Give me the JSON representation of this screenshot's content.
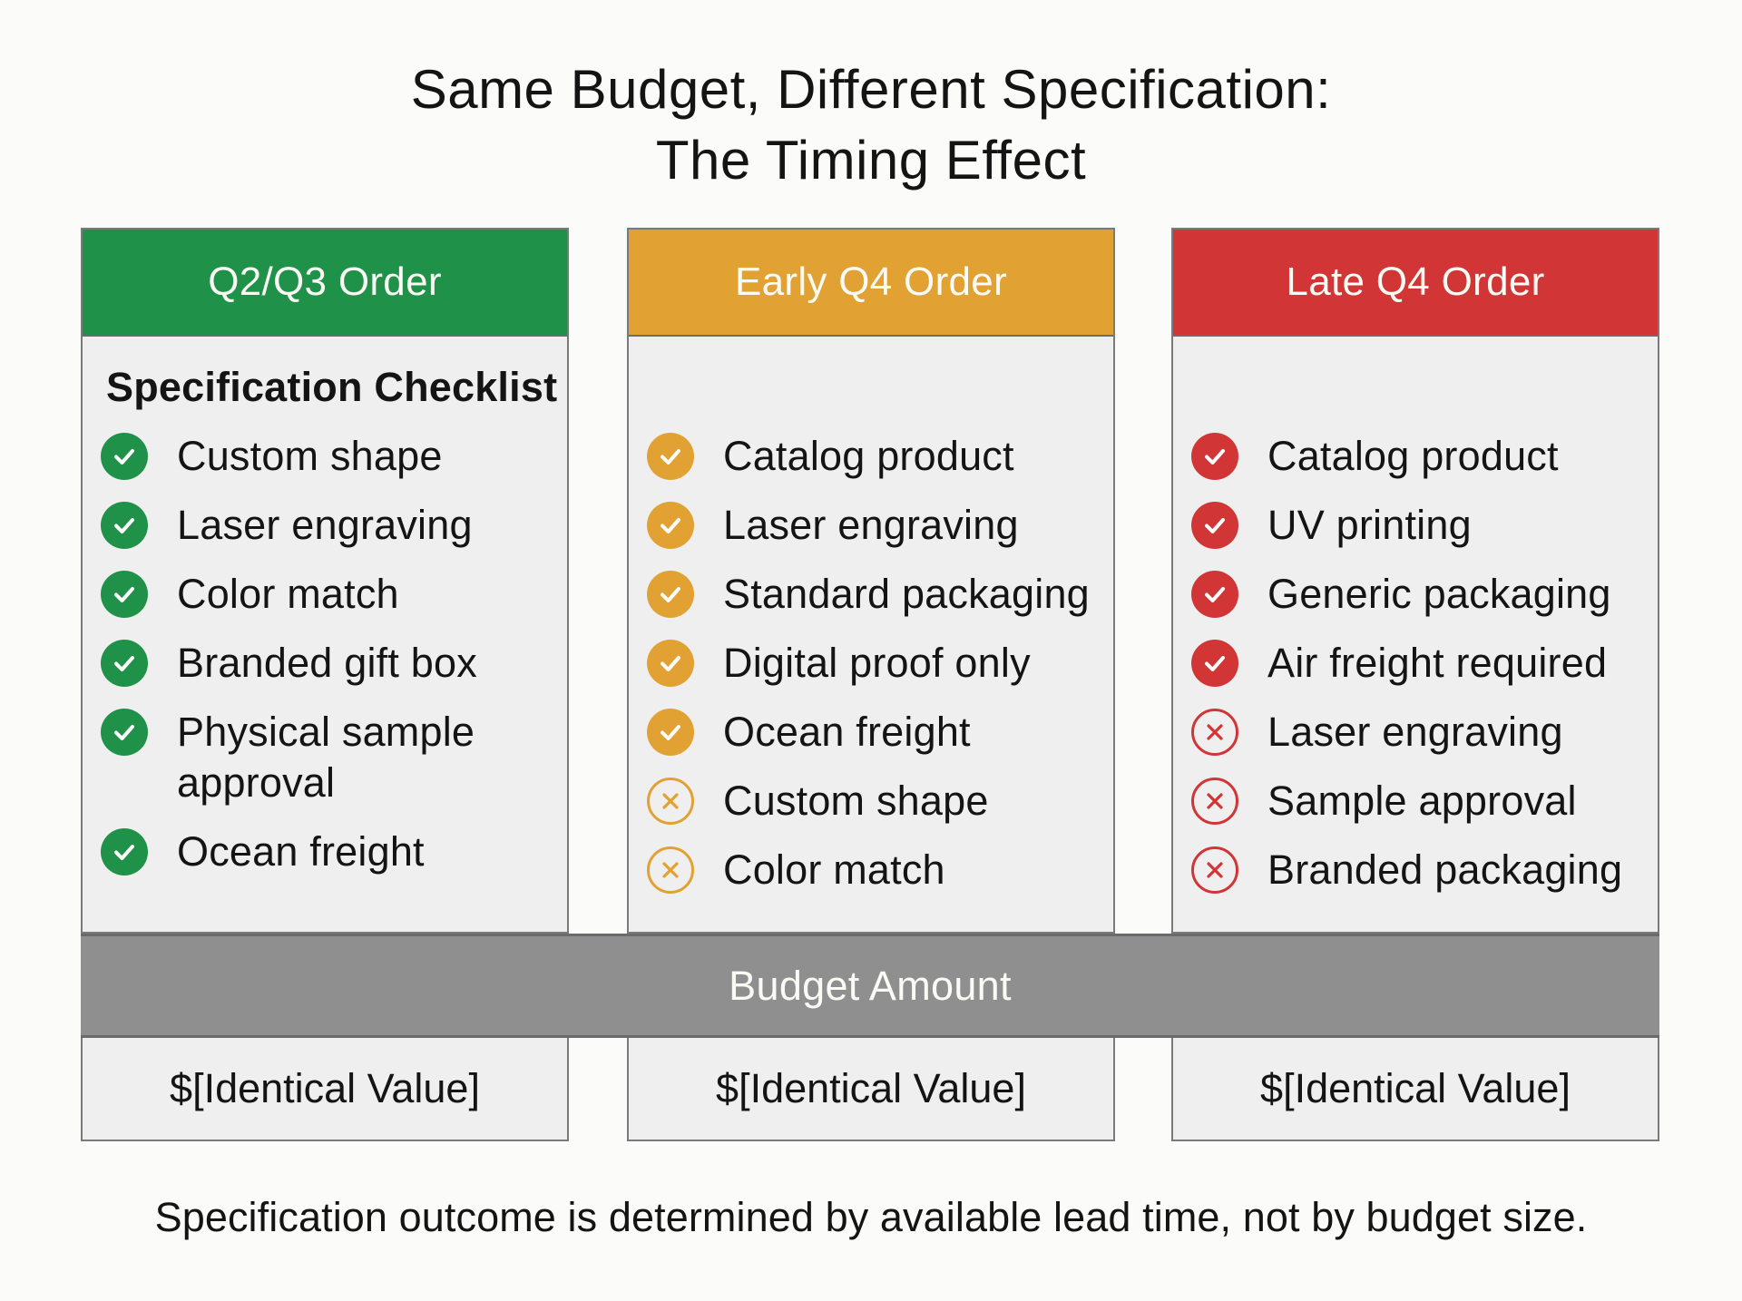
{
  "title": {
    "line1": "Same Budget, Different Specification:",
    "line2": "The Timing Effect"
  },
  "colors": {
    "green": "#1f9148",
    "orange": "#e1a133",
    "red": "#d13536",
    "band": "#8f8f8f",
    "panel_bg": "#efefef"
  },
  "panels": [
    {
      "header": "Q2/Q3 Order",
      "checklist_heading": "Specification Checklist",
      "items": [
        {
          "label": "Custom shape",
          "status": "included"
        },
        {
          "label": "Laser engraving",
          "status": "included"
        },
        {
          "label": "Color match",
          "status": "included"
        },
        {
          "label": "Branded gift box",
          "status": "included"
        },
        {
          "label": "Physical sample approval",
          "status": "included"
        },
        {
          "label": "Ocean freight",
          "status": "included"
        }
      ],
      "budget_value": "$[Identical Value]"
    },
    {
      "header": "Early Q4 Order",
      "items": [
        {
          "label": "Catalog product",
          "status": "included"
        },
        {
          "label": "Laser engraving",
          "status": "included"
        },
        {
          "label": "Standard packaging",
          "status": "included"
        },
        {
          "label": "Digital proof only",
          "status": "included"
        },
        {
          "label": "Ocean freight",
          "status": "included"
        },
        {
          "label": "Custom shape",
          "status": "excluded"
        },
        {
          "label": "Color match",
          "status": "excluded"
        }
      ],
      "budget_value": "$[Identical Value]"
    },
    {
      "header": "Late Q4 Order",
      "items": [
        {
          "label": "Catalog product",
          "status": "included"
        },
        {
          "label": "UV printing",
          "status": "included"
        },
        {
          "label": "Generic packaging",
          "status": "included"
        },
        {
          "label": "Air freight required",
          "status": "included"
        },
        {
          "label": "Laser engraving",
          "status": "excluded"
        },
        {
          "label": "Sample approval",
          "status": "excluded"
        },
        {
          "label": "Branded packaging",
          "status": "excluded"
        }
      ],
      "budget_value": "$[Identical Value]"
    }
  ],
  "budget_band_label": "Budget Amount",
  "footer": "Specification outcome is determined by available lead time, not by budget size.",
  "icons": {
    "included": "check-circle-icon",
    "excluded": "x-circle-icon"
  }
}
